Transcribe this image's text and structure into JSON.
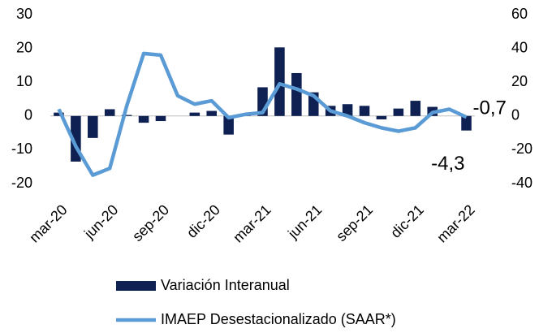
{
  "chart_data": {
    "type": "bar-line",
    "categories": [
      "mar-20",
      null,
      null,
      "jun-20",
      null,
      null,
      "sep-20",
      null,
      null,
      "dic-20",
      null,
      null,
      "mar-21",
      null,
      null,
      "jun-21",
      null,
      null,
      "sep-21",
      null,
      null,
      "dic-21",
      null,
      null,
      "mar-22"
    ],
    "series": [
      {
        "name": "Variación Interanual",
        "type": "bar",
        "color": "#0e2152",
        "axis": "y",
        "values": [
          1,
          -13.5,
          -6.5,
          2,
          0.3,
          -2,
          -1.5,
          0,
          1,
          1.5,
          -5.5,
          0.3,
          8.5,
          20.3,
          12.7,
          7,
          3,
          3.5,
          3,
          -1,
          2.2,
          4.5,
          2.7,
          0,
          -4.3
        ],
        "value_labels": [
          null,
          null,
          null,
          null,
          null,
          null,
          null,
          null,
          null,
          null,
          null,
          null,
          null,
          null,
          null,
          null,
          null,
          null,
          null,
          null,
          null,
          null,
          null,
          null,
          "-4,3"
        ]
      },
      {
        "name": "IMAEP Desestacionalizado (SAAR*)",
        "type": "line",
        "color": "#5b9bd5",
        "axis": "y2",
        "values": [
          4,
          -18,
          -35,
          -31,
          6,
          37,
          36,
          12,
          7,
          9,
          -1,
          1,
          2,
          19,
          16,
          12,
          3,
          0,
          -4,
          -7,
          -9,
          -7,
          2,
          4,
          -0.7
        ],
        "value_labels": [
          null,
          null,
          null,
          null,
          null,
          null,
          null,
          null,
          null,
          null,
          null,
          null,
          null,
          null,
          null,
          null,
          null,
          null,
          null,
          null,
          null,
          null,
          null,
          null,
          "-0,7"
        ]
      }
    ],
    "ylim": [
      -20,
      30
    ],
    "yticks": [
      -20,
      -10,
      0,
      10,
      20,
      30
    ],
    "y2lim": [
      -40,
      60
    ],
    "y2ticks": [
      -40,
      -20,
      0,
      20,
      40,
      60
    ],
    "legend": "bottom"
  }
}
